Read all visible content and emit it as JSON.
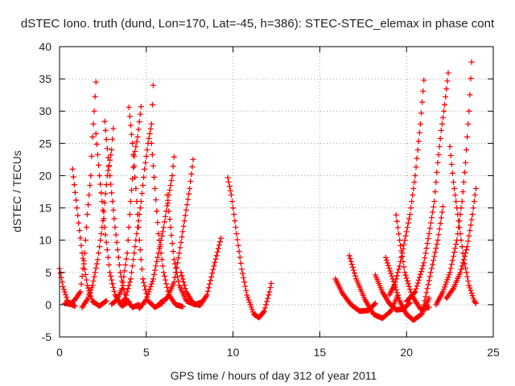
{
  "chart_data": {
    "type": "scatter",
    "title": "dSTEC Iono. truth (dund, Lon=170, Lat=-45, h=386): STEC-STEC_elemax in phase cont",
    "xlabel": "GPS time / hours of day 312 of year 2011",
    "ylabel": "dSTEC  / TECUs",
    "xlim": [
      0,
      25
    ],
    "ylim": [
      -5,
      40
    ],
    "xticks": [
      0,
      5,
      10,
      15,
      20,
      25
    ],
    "yticks": [
      -5,
      0,
      5,
      10,
      15,
      20,
      25,
      30,
      35,
      40
    ],
    "grid": true,
    "legend": "none",
    "marker": "+",
    "color": "#ff0000",
    "series": [
      {
        "points": [
          [
            0.0,
            5.6
          ],
          [
            0.2,
            2.8
          ],
          [
            0.5,
            0.3
          ],
          [
            0.7,
            0.0
          ],
          [
            0.9,
            -0.2
          ]
        ]
      },
      {
        "points": [
          [
            0.75,
            21.0
          ],
          [
            1.0,
            15.0
          ],
          [
            1.3,
            8.0
          ],
          [
            1.6,
            3.0
          ],
          [
            1.9,
            0.5
          ],
          [
            2.3,
            -0.2
          ],
          [
            2.7,
            0.6
          ]
        ]
      },
      {
        "points": [
          [
            0.3,
            0.2
          ],
          [
            0.6,
            0.1
          ],
          [
            0.9,
            0.8
          ],
          [
            1.2,
            2.0
          ],
          [
            1.45,
            8.0
          ],
          [
            1.6,
            14.0
          ],
          [
            1.8,
            20.0
          ],
          [
            1.9,
            26.0
          ],
          [
            2.0,
            30.0
          ],
          [
            2.1,
            34.5
          ]
        ]
      },
      {
        "points": [
          [
            1.3,
            -0.4
          ],
          [
            1.6,
            0.8
          ],
          [
            1.9,
            3.0
          ],
          [
            2.2,
            7.0
          ],
          [
            2.5,
            13.0
          ],
          [
            2.75,
            20.0
          ],
          [
            3.0,
            24.0
          ],
          [
            3.1,
            27.3
          ]
        ]
      },
      {
        "points": [
          [
            2.1,
            26.5
          ],
          [
            2.3,
            20.0
          ],
          [
            2.6,
            12.0
          ],
          [
            2.9,
            5.0
          ],
          [
            3.2,
            1.5
          ],
          [
            3.6,
            -0.2
          ],
          [
            4.0,
            0.5
          ]
        ]
      },
      {
        "points": [
          [
            2.6,
            28.4
          ],
          [
            2.9,
            20.0
          ],
          [
            3.2,
            12.0
          ],
          [
            3.5,
            5.0
          ],
          [
            3.8,
            1.0
          ],
          [
            4.2,
            -0.4
          ],
          [
            4.6,
            0.0
          ]
        ]
      },
      {
        "points": [
          [
            3.0,
            0.1
          ],
          [
            3.3,
            0.7
          ],
          [
            3.6,
            2.5
          ],
          [
            3.9,
            8.0
          ],
          [
            4.1,
            16.0
          ],
          [
            4.3,
            23.0
          ],
          [
            4.5,
            26.0
          ],
          [
            4.7,
            30.7
          ]
        ]
      },
      {
        "points": [
          [
            3.5,
            0.0
          ],
          [
            3.8,
            1.0
          ],
          [
            4.1,
            4.0
          ],
          [
            4.4,
            10.0
          ],
          [
            4.7,
            16.0
          ],
          [
            4.9,
            21.0
          ],
          [
            5.1,
            25.0
          ],
          [
            5.3,
            28.0
          ],
          [
            5.4,
            34.0
          ]
        ]
      },
      {
        "points": [
          [
            4.0,
            30.6
          ],
          [
            4.2,
            25.0
          ],
          [
            4.4,
            18.0
          ],
          [
            4.6,
            10.0
          ],
          [
            4.8,
            4.0
          ],
          [
            5.1,
            0.6
          ],
          [
            5.5,
            -0.4
          ],
          [
            5.9,
            0.2
          ]
        ]
      },
      {
        "points": [
          [
            4.6,
            -0.6
          ],
          [
            5.0,
            0.8
          ],
          [
            5.4,
            4.0
          ],
          [
            5.7,
            8.0
          ],
          [
            6.0,
            12.0
          ],
          [
            6.3,
            17.0
          ],
          [
            6.5,
            20.0
          ],
          [
            6.6,
            22.9
          ]
        ]
      },
      {
        "points": [
          [
            5.3,
            25.0
          ],
          [
            5.5,
            18.0
          ],
          [
            5.7,
            11.0
          ],
          [
            6.0,
            5.0
          ],
          [
            6.3,
            1.5
          ],
          [
            6.7,
            0.0
          ],
          [
            7.1,
            -0.3
          ]
        ]
      },
      {
        "points": [
          [
            5.8,
            0.3
          ],
          [
            6.2,
            1.0
          ],
          [
            6.6,
            3.5
          ],
          [
            6.9,
            8.0
          ],
          [
            7.2,
            13.0
          ],
          [
            7.5,
            18.0
          ],
          [
            7.7,
            22.5
          ]
        ]
      },
      {
        "points": [
          [
            6.2,
            17.0
          ],
          [
            6.4,
            12.0
          ],
          [
            6.6,
            7.0
          ],
          [
            6.9,
            3.0
          ],
          [
            7.3,
            0.6
          ],
          [
            7.8,
            0.0
          ],
          [
            8.2,
            0.4
          ]
        ]
      },
      {
        "points": [
          [
            7.0,
            5.0
          ],
          [
            7.3,
            2.0
          ],
          [
            7.7,
            0.2
          ],
          [
            8.1,
            -0.1
          ],
          [
            8.5,
            1.5
          ],
          [
            8.9,
            6.0
          ],
          [
            9.3,
            10.3
          ]
        ]
      },
      {
        "points": [
          [
            9.7,
            19.7
          ],
          [
            9.9,
            17.0
          ],
          [
            10.2,
            11.0
          ],
          [
            10.5,
            5.5
          ],
          [
            10.8,
            1.5
          ],
          [
            11.2,
            -1.5
          ],
          [
            11.5,
            -2.0
          ],
          [
            11.8,
            -1.0
          ],
          [
            12.1,
            2.0
          ],
          [
            12.2,
            3.3
          ]
        ]
      },
      {
        "points": [
          [
            15.9,
            4.0
          ],
          [
            16.3,
            1.8
          ],
          [
            16.8,
            0.0
          ],
          [
            17.3,
            -1.0
          ],
          [
            17.8,
            -0.9
          ],
          [
            18.2,
            0.2
          ]
        ]
      },
      {
        "points": [
          [
            16.7,
            7.6
          ],
          [
            17.1,
            4.0
          ],
          [
            17.6,
            0.8
          ],
          [
            18.1,
            -1.5
          ],
          [
            18.6,
            -2.1
          ],
          [
            19.1,
            -1.0
          ],
          [
            19.5,
            1.5
          ]
        ]
      },
      {
        "points": [
          [
            18.2,
            4.6
          ],
          [
            18.6,
            2.0
          ],
          [
            19.0,
            0.2
          ],
          [
            19.4,
            -0.8
          ],
          [
            19.8,
            -0.7
          ],
          [
            20.2,
            0.3
          ]
        ]
      },
      {
        "points": [
          [
            18.8,
            7.3
          ],
          [
            19.2,
            4.0
          ],
          [
            19.6,
            0.6
          ],
          [
            20.0,
            -1.5
          ],
          [
            20.4,
            -2.4
          ],
          [
            20.9,
            -1.4
          ],
          [
            21.3,
            1.0
          ]
        ]
      },
      {
        "points": [
          [
            19.0,
            1.5
          ],
          [
            19.3,
            3.0
          ],
          [
            19.6,
            6.0
          ],
          [
            19.9,
            10.0
          ],
          [
            20.2,
            14.0
          ],
          [
            20.5,
            20.0
          ],
          [
            20.8,
            28.0
          ],
          [
            21.0,
            34.8
          ]
        ]
      },
      {
        "points": [
          [
            19.4,
            13.9
          ],
          [
            19.6,
            10.0
          ],
          [
            19.9,
            5.0
          ],
          [
            20.3,
            1.5
          ],
          [
            20.8,
            -0.7
          ],
          [
            21.3,
            -0.4
          ]
        ]
      },
      {
        "points": [
          [
            20.0,
            0.5
          ],
          [
            20.5,
            2.0
          ],
          [
            21.0,
            6.5
          ],
          [
            21.3,
            11.0
          ],
          [
            21.6,
            16.0
          ],
          [
            21.8,
            22.0
          ],
          [
            22.0,
            27.0
          ],
          [
            22.2,
            31.0
          ],
          [
            22.4,
            35.9
          ]
        ]
      },
      {
        "points": [
          [
            21.0,
            0.0
          ],
          [
            21.4,
            5.0
          ],
          [
            21.8,
            10.0
          ],
          [
            22.1,
            15.2
          ]
        ]
      },
      {
        "points": [
          [
            22.5,
            24.5
          ],
          [
            22.7,
            19.0
          ],
          [
            23.0,
            13.0
          ],
          [
            23.3,
            7.0
          ],
          [
            23.6,
            3.0
          ],
          [
            23.9,
            0.6
          ],
          [
            24.0,
            0.2
          ]
        ]
      },
      {
        "points": [
          [
            21.7,
            0.0
          ],
          [
            22.1,
            2.0
          ],
          [
            22.5,
            5.0
          ],
          [
            22.9,
            10.0
          ],
          [
            23.2,
            16.0
          ],
          [
            23.4,
            22.0
          ],
          [
            23.6,
            30.0
          ],
          [
            23.75,
            37.6
          ]
        ]
      },
      {
        "points": [
          [
            22.3,
            1.0
          ],
          [
            22.7,
            2.5
          ],
          [
            23.1,
            5.0
          ],
          [
            23.5,
            9.0
          ],
          [
            23.8,
            14.0
          ],
          [
            24.0,
            18.0
          ]
        ]
      }
    ]
  }
}
